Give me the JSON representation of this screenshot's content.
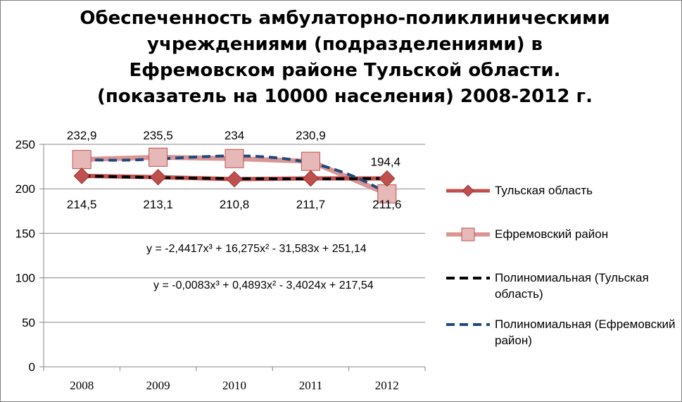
{
  "chart_data": {
    "type": "line",
    "title_lines": [
      "Обеспеченность амбулаторно-поликлиническими",
      "учреждениями  (подразделениями) в",
      "Ефремовском районе Тульской области.",
      "(показатель на 10000 населения) 2008-2012 г."
    ],
    "categories": [
      "2008",
      "2009",
      "2010",
      "2011",
      "2012"
    ],
    "y_ticks": [
      "0",
      "50",
      "100",
      "150",
      "200",
      "250"
    ],
    "ylim": [
      0,
      250
    ],
    "grid": "horizontal",
    "legend_position": "right",
    "series": [
      {
        "name": "Тульская область",
        "values": [
          214.5,
          213.1,
          210.8,
          211.7,
          211.6
        ],
        "labels": [
          "214,5",
          "213,1",
          "210,8",
          "211,7",
          "211,6"
        ],
        "color": "#c0504d",
        "marker": "diamond"
      },
      {
        "name": "Ефремовский район",
        "values": [
          232.9,
          235.5,
          234,
          230.9,
          194.4
        ],
        "labels": [
          "232,9",
          "235,5",
          "234",
          "230,9",
          "194,4"
        ],
        "color": "#d99694",
        "marker": "square"
      }
    ],
    "trendlines": [
      {
        "name": "Полиномиальная (Тульская область)",
        "type": "polynomial",
        "order": 3,
        "color": "#000000",
        "equation": "y = -0,0083x³ + 0,4893x² - 3,4024x + 217,54",
        "coefficients": [
          -0.0083,
          0.4893,
          -3.4024,
          217.54
        ]
      },
      {
        "name": "Полиномиальная (Ефремовский район)",
        "type": "polynomial",
        "order": 3,
        "color": "#1f497d",
        "equation": "y = -2,4417x³ + 16,275x² - 31,583x + 251,14",
        "coefficients": [
          -2.4417,
          16.275,
          -31.583,
          251.14
        ]
      }
    ]
  }
}
